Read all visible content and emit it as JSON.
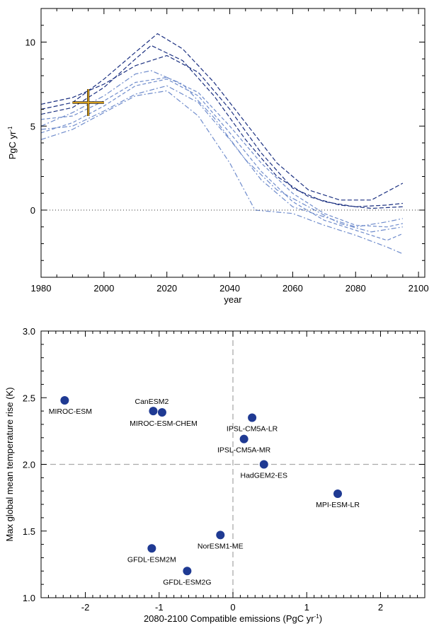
{
  "chart_data": [
    {
      "type": "line",
      "xlabel": "year",
      "ylabel": "PgC yr",
      "ylabel_sup": "-1",
      "xlim": [
        1980,
        2102
      ],
      "ylim": [
        -4,
        12
      ],
      "xticks": [
        1980,
        2000,
        2020,
        2040,
        2060,
        2080,
        2100
      ],
      "xtick_labels": [
        "1980",
        "2000",
        "2020",
        "2040",
        "2060",
        "2080",
        "2100"
      ],
      "yticks": [
        0,
        5,
        10
      ],
      "ytick_labels": [
        "0",
        "5",
        "10"
      ],
      "zero_line": 0,
      "grid": false,
      "colors": {
        "dark": "#1a2f80",
        "light": "#6f8ccc",
        "marker": "#f0b020"
      },
      "observation": {
        "x": 1995,
        "y": 6.4,
        "x_error": [
          1990,
          2000
        ],
        "y_error": [
          5.6,
          7.2
        ]
      },
      "series": [
        {
          "style": "dark",
          "x": [
            1980,
            1990,
            2000,
            2010,
            2017,
            2025,
            2035,
            2045,
            2055,
            2065,
            2075,
            2085,
            2095
          ],
          "y": [
            6.0,
            6.4,
            7.8,
            9.4,
            10.5,
            9.6,
            7.6,
            5.2,
            2.8,
            1.2,
            0.6,
            0.6,
            1.6
          ]
        },
        {
          "style": "dark",
          "x": [
            1980,
            1990,
            2000,
            2010,
            2015,
            2025,
            2035,
            2045,
            2055,
            2065,
            2075,
            2085,
            2095
          ],
          "y": [
            5.7,
            6.1,
            7.3,
            9.0,
            9.8,
            8.9,
            6.8,
            4.2,
            2.0,
            0.8,
            0.3,
            0.1,
            0.2
          ]
        },
        {
          "style": "dark",
          "x": [
            1980,
            1990,
            2000,
            2010,
            2020,
            2030,
            2040,
            2050,
            2060,
            2070,
            2080,
            2090,
            2095
          ],
          "y": [
            6.3,
            6.7,
            7.5,
            8.6,
            9.2,
            8.2,
            6.0,
            3.4,
            1.3,
            0.5,
            0.2,
            0.3,
            0.4
          ]
        },
        {
          "style": "light",
          "x": [
            1980,
            1990,
            2000,
            2010,
            2015,
            2025,
            2035,
            2045,
            2055,
            2065,
            2075,
            2085,
            2095
          ],
          "y": [
            5.0,
            5.8,
            6.8,
            8.1,
            8.3,
            7.5,
            5.5,
            3.0,
            1.2,
            0.2,
            -0.8,
            -1.3,
            -1.0
          ]
        },
        {
          "style": "light",
          "x": [
            1980,
            1990,
            2000,
            2010,
            2020,
            2030,
            2040,
            2050,
            2060,
            2070,
            2080,
            2090,
            2095
          ],
          "y": [
            4.6,
            5.2,
            6.2,
            7.4,
            7.8,
            6.8,
            4.6,
            2.3,
            0.5,
            -0.6,
            -1.2,
            -1.8,
            -1.4
          ]
        },
        {
          "style": "light",
          "x": [
            1980,
            1990,
            2000,
            2010,
            2020,
            2030,
            2040,
            2048,
            2060,
            2070,
            2080,
            2090,
            2095
          ],
          "y": [
            4.2,
            4.8,
            5.8,
            6.8,
            7.1,
            5.6,
            2.8,
            0.0,
            -0.2,
            -0.9,
            -1.5,
            -2.2,
            -2.6
          ]
        },
        {
          "style": "light",
          "x": [
            1980,
            1990,
            2000,
            2010,
            2020,
            2030,
            2040,
            2050,
            2060,
            2070,
            2080,
            2090,
            2095
          ],
          "y": [
            5.4,
            5.6,
            6.5,
            7.6,
            7.9,
            7.0,
            5.0,
            2.8,
            1.0,
            -0.2,
            -0.9,
            -1.0,
            -0.8
          ]
        },
        {
          "style": "light",
          "x": [
            1980,
            1990,
            2000,
            2010,
            2020,
            2030,
            2040,
            2050,
            2060,
            2070,
            2080,
            2090,
            2095
          ],
          "y": [
            4.8,
            5.0,
            5.9,
            6.9,
            7.4,
            6.4,
            4.2,
            1.8,
            0.2,
            -0.4,
            -1.0,
            -0.7,
            -0.5
          ]
        }
      ]
    },
    {
      "type": "scatter",
      "xlabel": "2080-2100 Compatible emissions (PgC yr",
      "xlabel_sup": "-1",
      "xlabel_end": ")",
      "ylabel": "Max global mean temperature rise (K)",
      "xlim": [
        -2.6,
        2.6
      ],
      "ylim": [
        1.0,
        3.0
      ],
      "xticks": [
        -2,
        -1,
        0,
        1,
        2
      ],
      "xtick_labels": [
        "-2",
        "-1",
        "0",
        "1",
        "2"
      ],
      "yticks": [
        1.0,
        1.5,
        2.0,
        2.5,
        3.0
      ],
      "ytick_labels": [
        "1.0",
        "1.5",
        "2.0",
        "2.5",
        "3.0"
      ],
      "reference_lines": {
        "x": 0,
        "y": 2.0
      },
      "grid": false,
      "marker_color": "#1f3a93",
      "points": [
        {
          "label": "MIROC-ESM",
          "x": -2.28,
          "y": 2.48,
          "label_pos": "below"
        },
        {
          "label": "CanESM2",
          "x": -1.08,
          "y": 2.4,
          "label_pos": "above-left"
        },
        {
          "label": "MIROC-ESM-CHEM",
          "x": -0.96,
          "y": 2.39,
          "label_pos": "below"
        },
        {
          "label": "IPSL-CM5A-LR",
          "x": 0.26,
          "y": 2.35,
          "label_pos": "below"
        },
        {
          "label": "IPSL-CM5A-MR",
          "x": 0.15,
          "y": 2.19,
          "label_pos": "below"
        },
        {
          "label": "HadGEM2-ES",
          "x": 0.42,
          "y": 2.0,
          "label_pos": "below"
        },
        {
          "label": "MPI-ESM-LR",
          "x": 1.42,
          "y": 1.78,
          "label_pos": "below"
        },
        {
          "label": "NorESM1-ME",
          "x": -0.17,
          "y": 1.47,
          "label_pos": "below"
        },
        {
          "label": "GFDL-ESM2M",
          "x": -1.1,
          "y": 1.37,
          "label_pos": "below"
        },
        {
          "label": "GFDL-ESM2G",
          "x": -0.62,
          "y": 1.2,
          "label_pos": "below"
        }
      ]
    }
  ]
}
